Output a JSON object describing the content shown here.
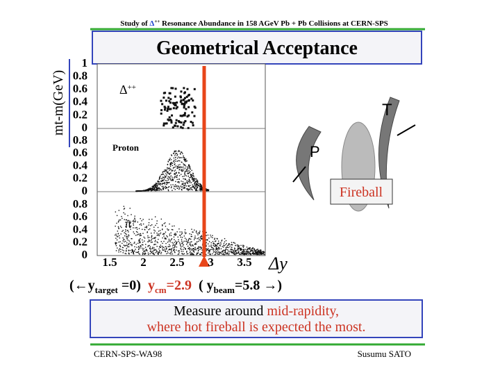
{
  "header": {
    "title_prefix": "Study of ",
    "title_delta": "Δ",
    "title_sup": "++",
    "title_suffix": " Resonance Abundance in 158 AGeV Pb + Pb Collisions at CERN-SPS"
  },
  "box_title": "Geometrical Acceptance",
  "y_axis_label": "mt-m(GeV)",
  "plot": {
    "panels": [
      {
        "label": "Δ",
        "label_sup": "++",
        "ticks": [
          "1",
          "0.8",
          "0.6",
          "0.4",
          "0.2",
          "0"
        ]
      },
      {
        "label": "Proton",
        "ticks": [
          "0.8",
          "0.6",
          "0.4",
          "0.2",
          "0"
        ]
      },
      {
        "label": "π",
        "label_sup": "+",
        "ticks": [
          "0.8",
          "0.6",
          "0.4",
          "0.2",
          "0"
        ]
      }
    ],
    "x_ticks": [
      "1.5",
      "2",
      "2.5",
      "3",
      "3.5"
    ],
    "x_axis_label": "Δy"
  },
  "diagram": {
    "target_label": "T",
    "projectile_label": "P",
    "fireball_label": "Fireball"
  },
  "rapidity": {
    "open_target": "(←y",
    "target_sub": "target",
    "target_value": " =0)",
    "cm": "y",
    "cm_sub": "cm",
    "cm_value": "=2.9",
    "open_beam": "( y",
    "beam_sub": "beam",
    "beam_value": "=5.8 →)"
  },
  "note": {
    "line1_prefix": "Measure around ",
    "line1_highlight": "mid-rapidity,",
    "line2": "where hot fireball is expected the most."
  },
  "footer": {
    "left": "CERN-SPS-WA98",
    "right": "Susumu  SATO"
  }
}
